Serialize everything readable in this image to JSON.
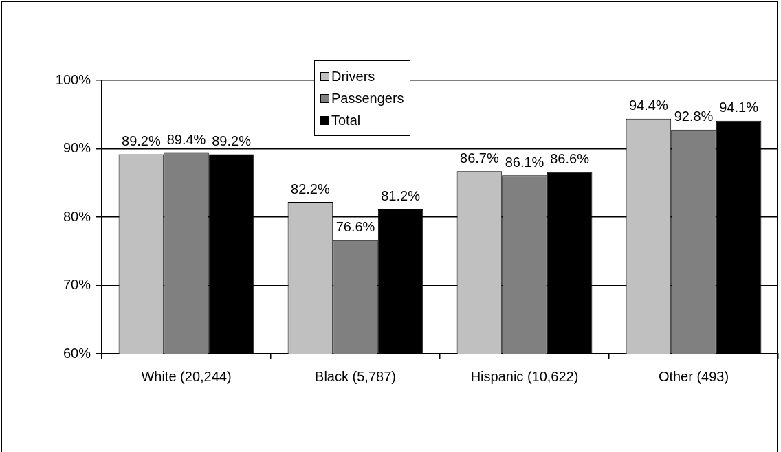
{
  "chart_data": {
    "type": "bar",
    "categories": [
      "White (20,244)",
      "Black (5,787)",
      "Hispanic (10,622)",
      "Other (493)"
    ],
    "series": [
      {
        "name": "Drivers",
        "color": "#c0c0c0",
        "values": [
          89.2,
          82.2,
          86.7,
          94.4
        ],
        "value_labels": [
          "89.2%",
          "82.2%",
          "86.7%",
          "94.4%"
        ]
      },
      {
        "name": "Passengers",
        "color": "#808080",
        "values": [
          89.4,
          76.6,
          86.1,
          92.8
        ],
        "value_labels": [
          "89.4%",
          "76.6%",
          "86.1%",
          "92.8%"
        ]
      },
      {
        "name": "Total",
        "color": "#000000",
        "values": [
          89.2,
          81.2,
          86.6,
          94.1
        ],
        "value_labels": [
          "89.2%",
          "81.2%",
          "86.6%",
          "94.1%"
        ]
      }
    ],
    "ylim": [
      60,
      100
    ],
    "yticks": [
      {
        "value": 60,
        "label": "60%"
      },
      {
        "value": 70,
        "label": "70%"
      },
      {
        "value": 80,
        "label": "80%"
      },
      {
        "value": 90,
        "label": "90%"
      },
      {
        "value": 100,
        "label": "100%"
      }
    ],
    "grid": "y",
    "legend": "top"
  }
}
